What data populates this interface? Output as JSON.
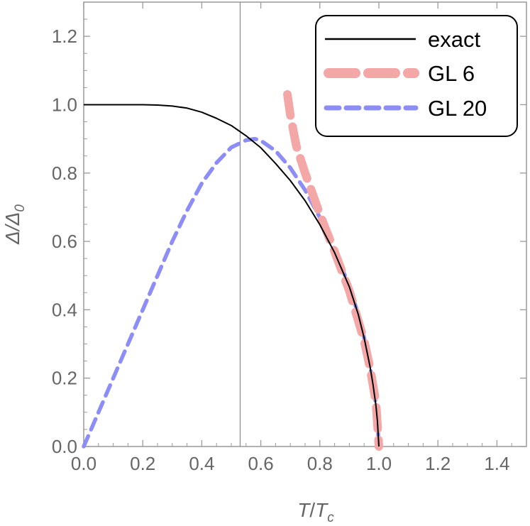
{
  "chart_data": {
    "type": "line",
    "xlim": [
      0,
      1.5
    ],
    "ylim": [
      0,
      1.3
    ],
    "x_ticks": [
      "0.0",
      "0.2",
      "0.4",
      "0.6",
      "0.8",
      "1.0",
      "1.2",
      "1.4"
    ],
    "y_ticks": [
      "0.0",
      "0.2",
      "0.4",
      "0.6",
      "0.8",
      "1.0",
      "1.2"
    ],
    "xlabel": {
      "main": "T",
      "slash": "/",
      "var": "T",
      "sub": "c"
    },
    "ylabel": {
      "main": "Δ",
      "slash": "/",
      "var": "Δ",
      "sub": "0"
    },
    "vertical_line_x": 0.53,
    "legend_position": "top-right",
    "series": [
      {
        "name": "exact",
        "color": "#000000",
        "style": "solid",
        "x": [
          0.0,
          0.05,
          0.1,
          0.15,
          0.2,
          0.25,
          0.3,
          0.35,
          0.4,
          0.45,
          0.5,
          0.55,
          0.6,
          0.65,
          0.7,
          0.75,
          0.8,
          0.85,
          0.9,
          0.93,
          0.95,
          0.97,
          0.98,
          0.99,
          0.995,
          1.0
        ],
        "values": [
          1.0,
          1.0,
          1.0,
          1.0,
          1.0,
          0.999,
          0.996,
          0.99,
          0.978,
          0.96,
          0.939,
          0.909,
          0.874,
          0.828,
          0.778,
          0.719,
          0.649,
          0.567,
          0.467,
          0.387,
          0.318,
          0.234,
          0.182,
          0.12,
          0.075,
          0.0
        ]
      },
      {
        "name": "GL 6",
        "color": "#f4a7a7",
        "style": "dashed",
        "x": [
          0.69,
          0.7,
          0.72,
          0.75,
          0.8,
          0.85,
          0.9,
          0.95,
          0.97,
          0.99,
          1.0
        ],
        "values": [
          1.03,
          0.97,
          0.88,
          0.8,
          0.68,
          0.57,
          0.455,
          0.31,
          0.23,
          0.13,
          0.0
        ]
      },
      {
        "name": "GL 20",
        "color": "#8d8df7",
        "style": "dashed",
        "x": [
          0.0,
          0.05,
          0.1,
          0.15,
          0.2,
          0.25,
          0.3,
          0.35,
          0.4,
          0.45,
          0.5,
          0.55,
          0.58,
          0.6,
          0.65,
          0.7,
          0.75,
          0.8,
          0.85,
          0.9,
          0.93,
          0.95,
          0.97,
          0.98,
          0.99,
          0.995,
          1.0
        ],
        "values": [
          0.0,
          0.1,
          0.2,
          0.3,
          0.4,
          0.5,
          0.6,
          0.69,
          0.77,
          0.83,
          0.875,
          0.896,
          0.9,
          0.895,
          0.865,
          0.815,
          0.75,
          0.67,
          0.575,
          0.468,
          0.387,
          0.318,
          0.234,
          0.182,
          0.12,
          0.075,
          0.0
        ]
      }
    ]
  }
}
